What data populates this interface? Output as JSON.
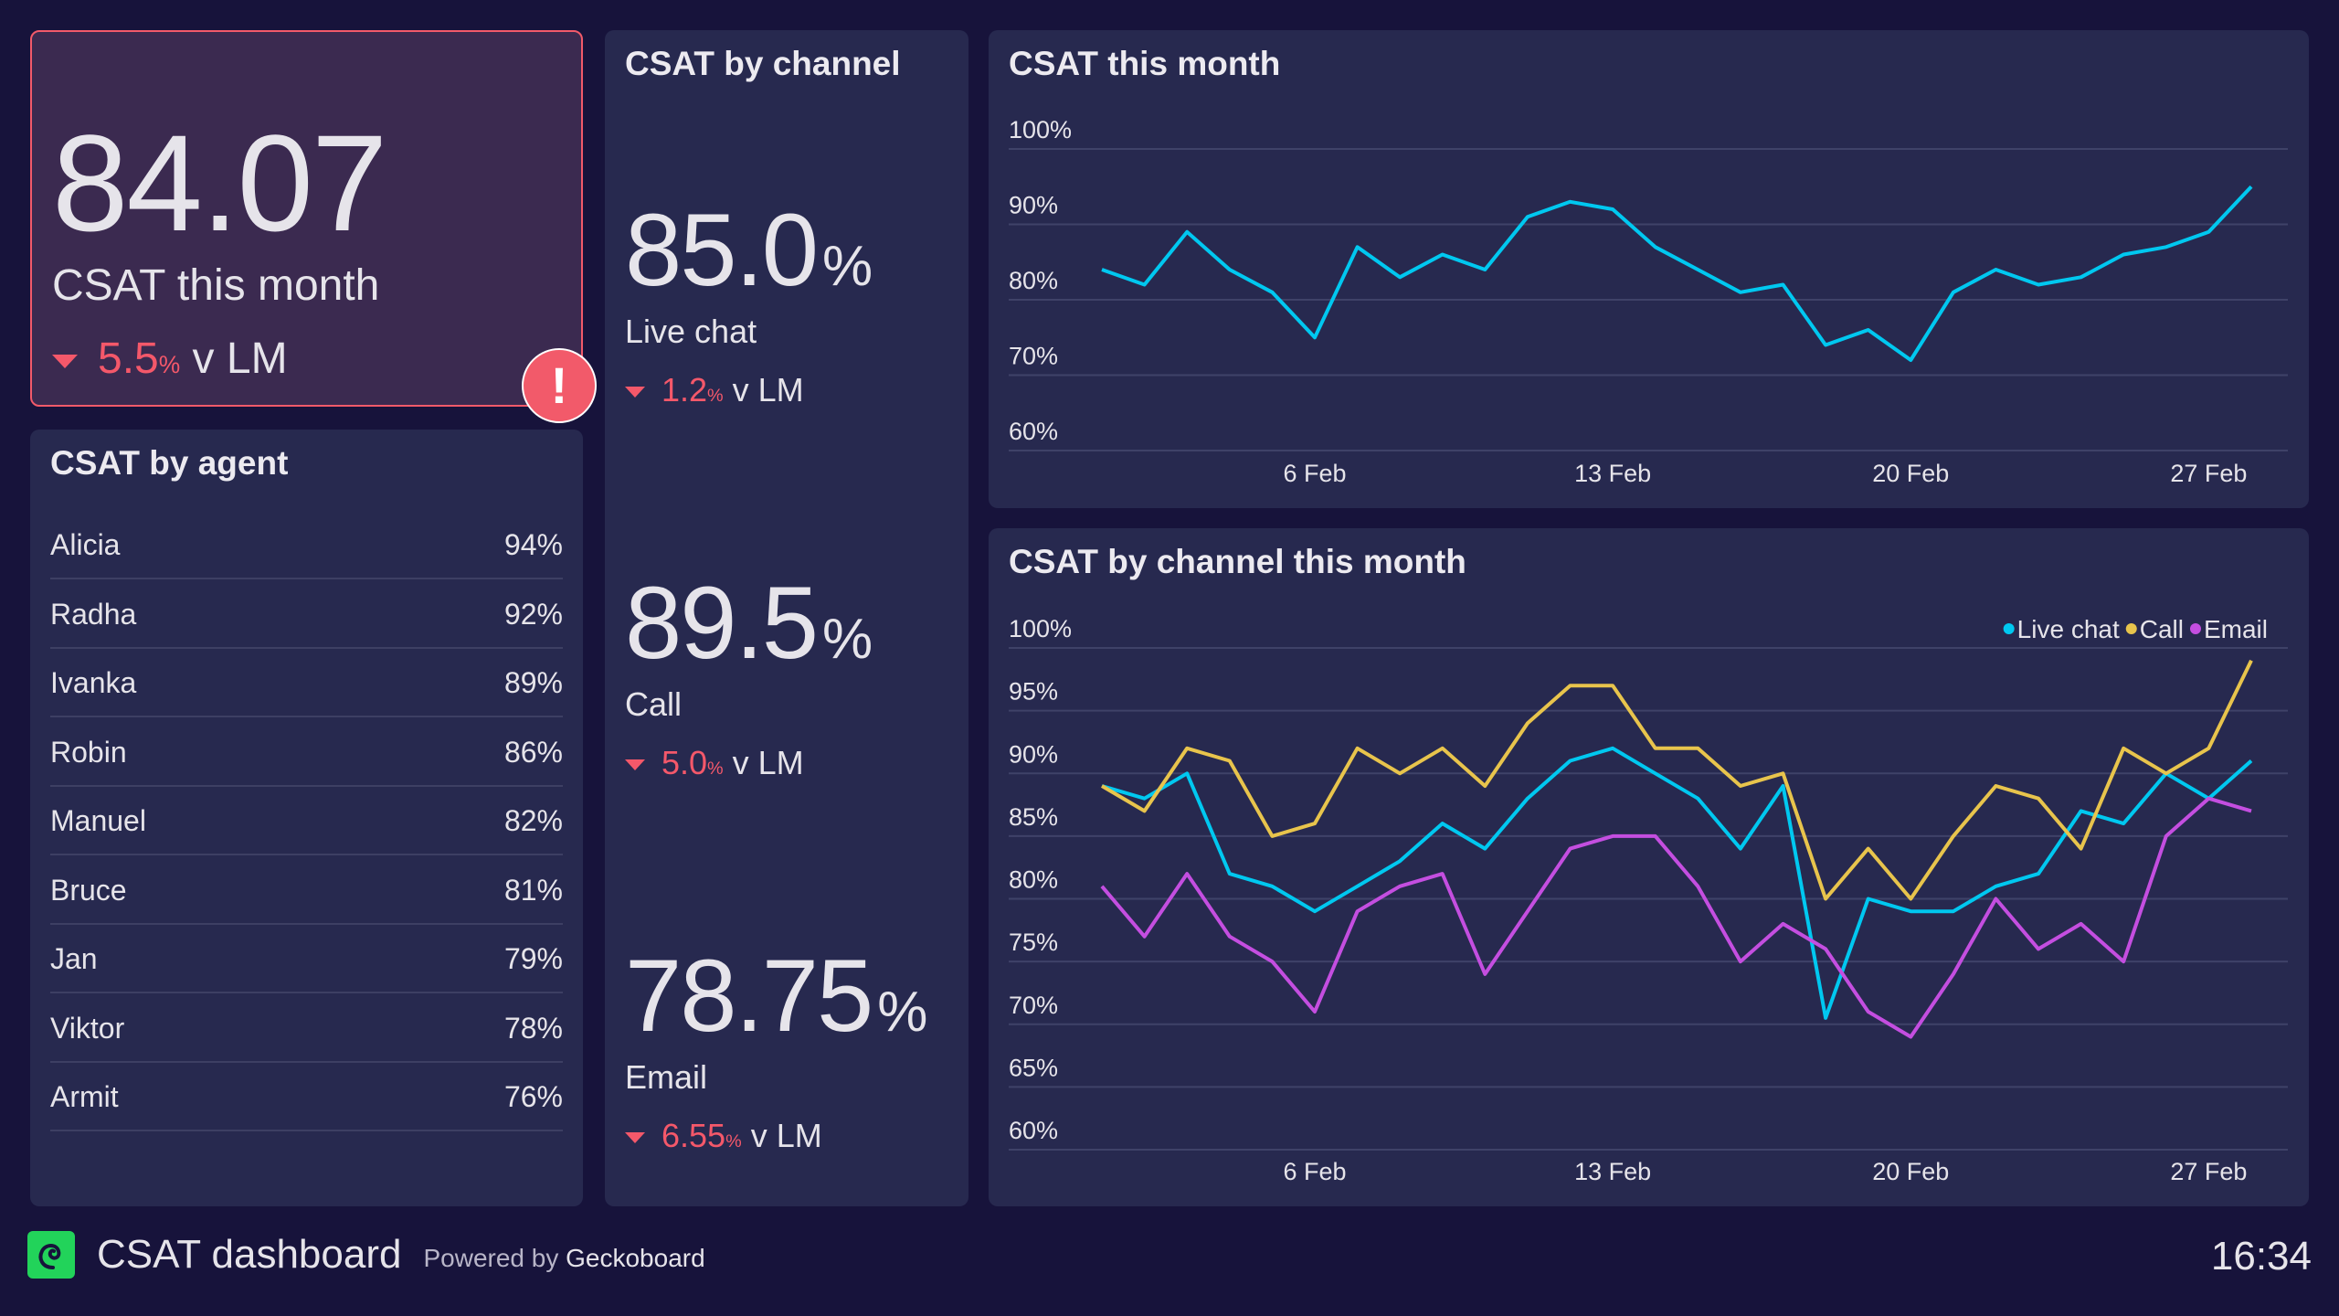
{
  "kpi": {
    "value": "84.07",
    "label": "CSAT this month",
    "change": "5.5",
    "change_unit": "%",
    "change_suffix": "v LM",
    "direction": "down",
    "alert_icon": "exclamation-icon"
  },
  "agents": {
    "title": "CSAT by agent",
    "rows": [
      {
        "name": "Alicia",
        "value": "94%"
      },
      {
        "name": "Radha",
        "value": "92%"
      },
      {
        "name": "Ivanka",
        "value": "89%"
      },
      {
        "name": "Robin",
        "value": "86%"
      },
      {
        "name": "Manuel",
        "value": "82%"
      },
      {
        "name": "Bruce",
        "value": "81%"
      },
      {
        "name": "Jan",
        "value": "79%"
      },
      {
        "name": "Viktor",
        "value": "78%"
      },
      {
        "name": "Armit",
        "value": "76%"
      }
    ]
  },
  "channels": {
    "title": "CSAT by channel",
    "items": [
      {
        "value": "85.0",
        "unit": "%",
        "name": "Live chat",
        "change": "1.2",
        "change_unit": "%",
        "change_suffix": "v LM"
      },
      {
        "value": "89.5",
        "unit": "%",
        "name": "Call",
        "change": "5.0",
        "change_unit": "%",
        "change_suffix": "v LM"
      },
      {
        "value": "78.75",
        "unit": "%",
        "name": "Email",
        "change": "6.55",
        "change_unit": "%",
        "change_suffix": "v LM"
      }
    ]
  },
  "chart_data": [
    {
      "type": "line",
      "title": "CSAT this month",
      "x": [
        "1 Feb",
        "2 Feb",
        "3 Feb",
        "4 Feb",
        "5 Feb",
        "6 Feb",
        "7 Feb",
        "8 Feb",
        "9 Feb",
        "10 Feb",
        "11 Feb",
        "12 Feb",
        "13 Feb",
        "14 Feb",
        "15 Feb",
        "16 Feb",
        "17 Feb",
        "18 Feb",
        "19 Feb",
        "20 Feb",
        "21 Feb",
        "22 Feb",
        "23 Feb",
        "24 Feb",
        "25 Feb",
        "26 Feb",
        "27 Feb",
        "28 Feb"
      ],
      "x_ticks": [
        "6 Feb",
        "13 Feb",
        "20 Feb",
        "27 Feb"
      ],
      "y_ticks": [
        "60%",
        "70%",
        "80%",
        "90%",
        "100%"
      ],
      "ylim": [
        60,
        100
      ],
      "grid": true,
      "series": [
        {
          "color": "#00c8f0",
          "values": [
            84,
            82,
            89,
            84,
            81,
            75,
            87,
            83,
            86,
            84,
            91,
            93,
            92,
            87,
            84,
            81,
            82,
            74,
            76,
            72,
            81,
            84,
            82,
            83,
            86,
            87,
            89,
            95
          ]
        }
      ]
    },
    {
      "type": "line",
      "title": "CSAT by channel this month",
      "x": [
        "1 Feb",
        "2 Feb",
        "3 Feb",
        "4 Feb",
        "5 Feb",
        "6 Feb",
        "7 Feb",
        "8 Feb",
        "9 Feb",
        "10 Feb",
        "11 Feb",
        "12 Feb",
        "13 Feb",
        "14 Feb",
        "15 Feb",
        "16 Feb",
        "17 Feb",
        "18 Feb",
        "19 Feb",
        "20 Feb",
        "21 Feb",
        "22 Feb",
        "23 Feb",
        "24 Feb",
        "25 Feb",
        "26 Feb",
        "27 Feb",
        "28 Feb"
      ],
      "x_ticks": [
        "6 Feb",
        "13 Feb",
        "20 Feb",
        "27 Feb"
      ],
      "y_ticks": [
        "60%",
        "65%",
        "70%",
        "75%",
        "80%",
        "85%",
        "90%",
        "95%",
        "100%"
      ],
      "ylim": [
        60,
        100
      ],
      "grid": true,
      "legend": "top-right",
      "series": [
        {
          "name": "Live chat",
          "color": "#00c8f0",
          "values": [
            89,
            88,
            90,
            82,
            81,
            79,
            81,
            83,
            86,
            84,
            88,
            91,
            92,
            90,
            88,
            84,
            89,
            70.5,
            80,
            79,
            79,
            81,
            82,
            87,
            86,
            90,
            88,
            91
          ]
        },
        {
          "name": "Call",
          "color": "#e8c44c",
          "values": [
            89,
            87,
            92,
            91,
            85,
            86,
            92,
            90,
            92,
            89,
            94,
            97,
            97,
            92,
            92,
            89,
            90,
            80,
            84,
            80,
            85,
            89,
            88,
            84,
            92,
            90,
            92,
            99
          ]
        },
        {
          "name": "Email",
          "color": "#c44ee0",
          "values": [
            81,
            77,
            82,
            77,
            75,
            71,
            79,
            81,
            82,
            74,
            79,
            84,
            85,
            85,
            81,
            75,
            78,
            76,
            71,
            69,
            74,
            80,
            76,
            78,
            75,
            85,
            88,
            87
          ]
        }
      ]
    }
  ],
  "footer": {
    "title": "CSAT dashboard",
    "powered_prefix": "Powered by",
    "powered_brand": "Geckoboard",
    "time": "16:34"
  }
}
